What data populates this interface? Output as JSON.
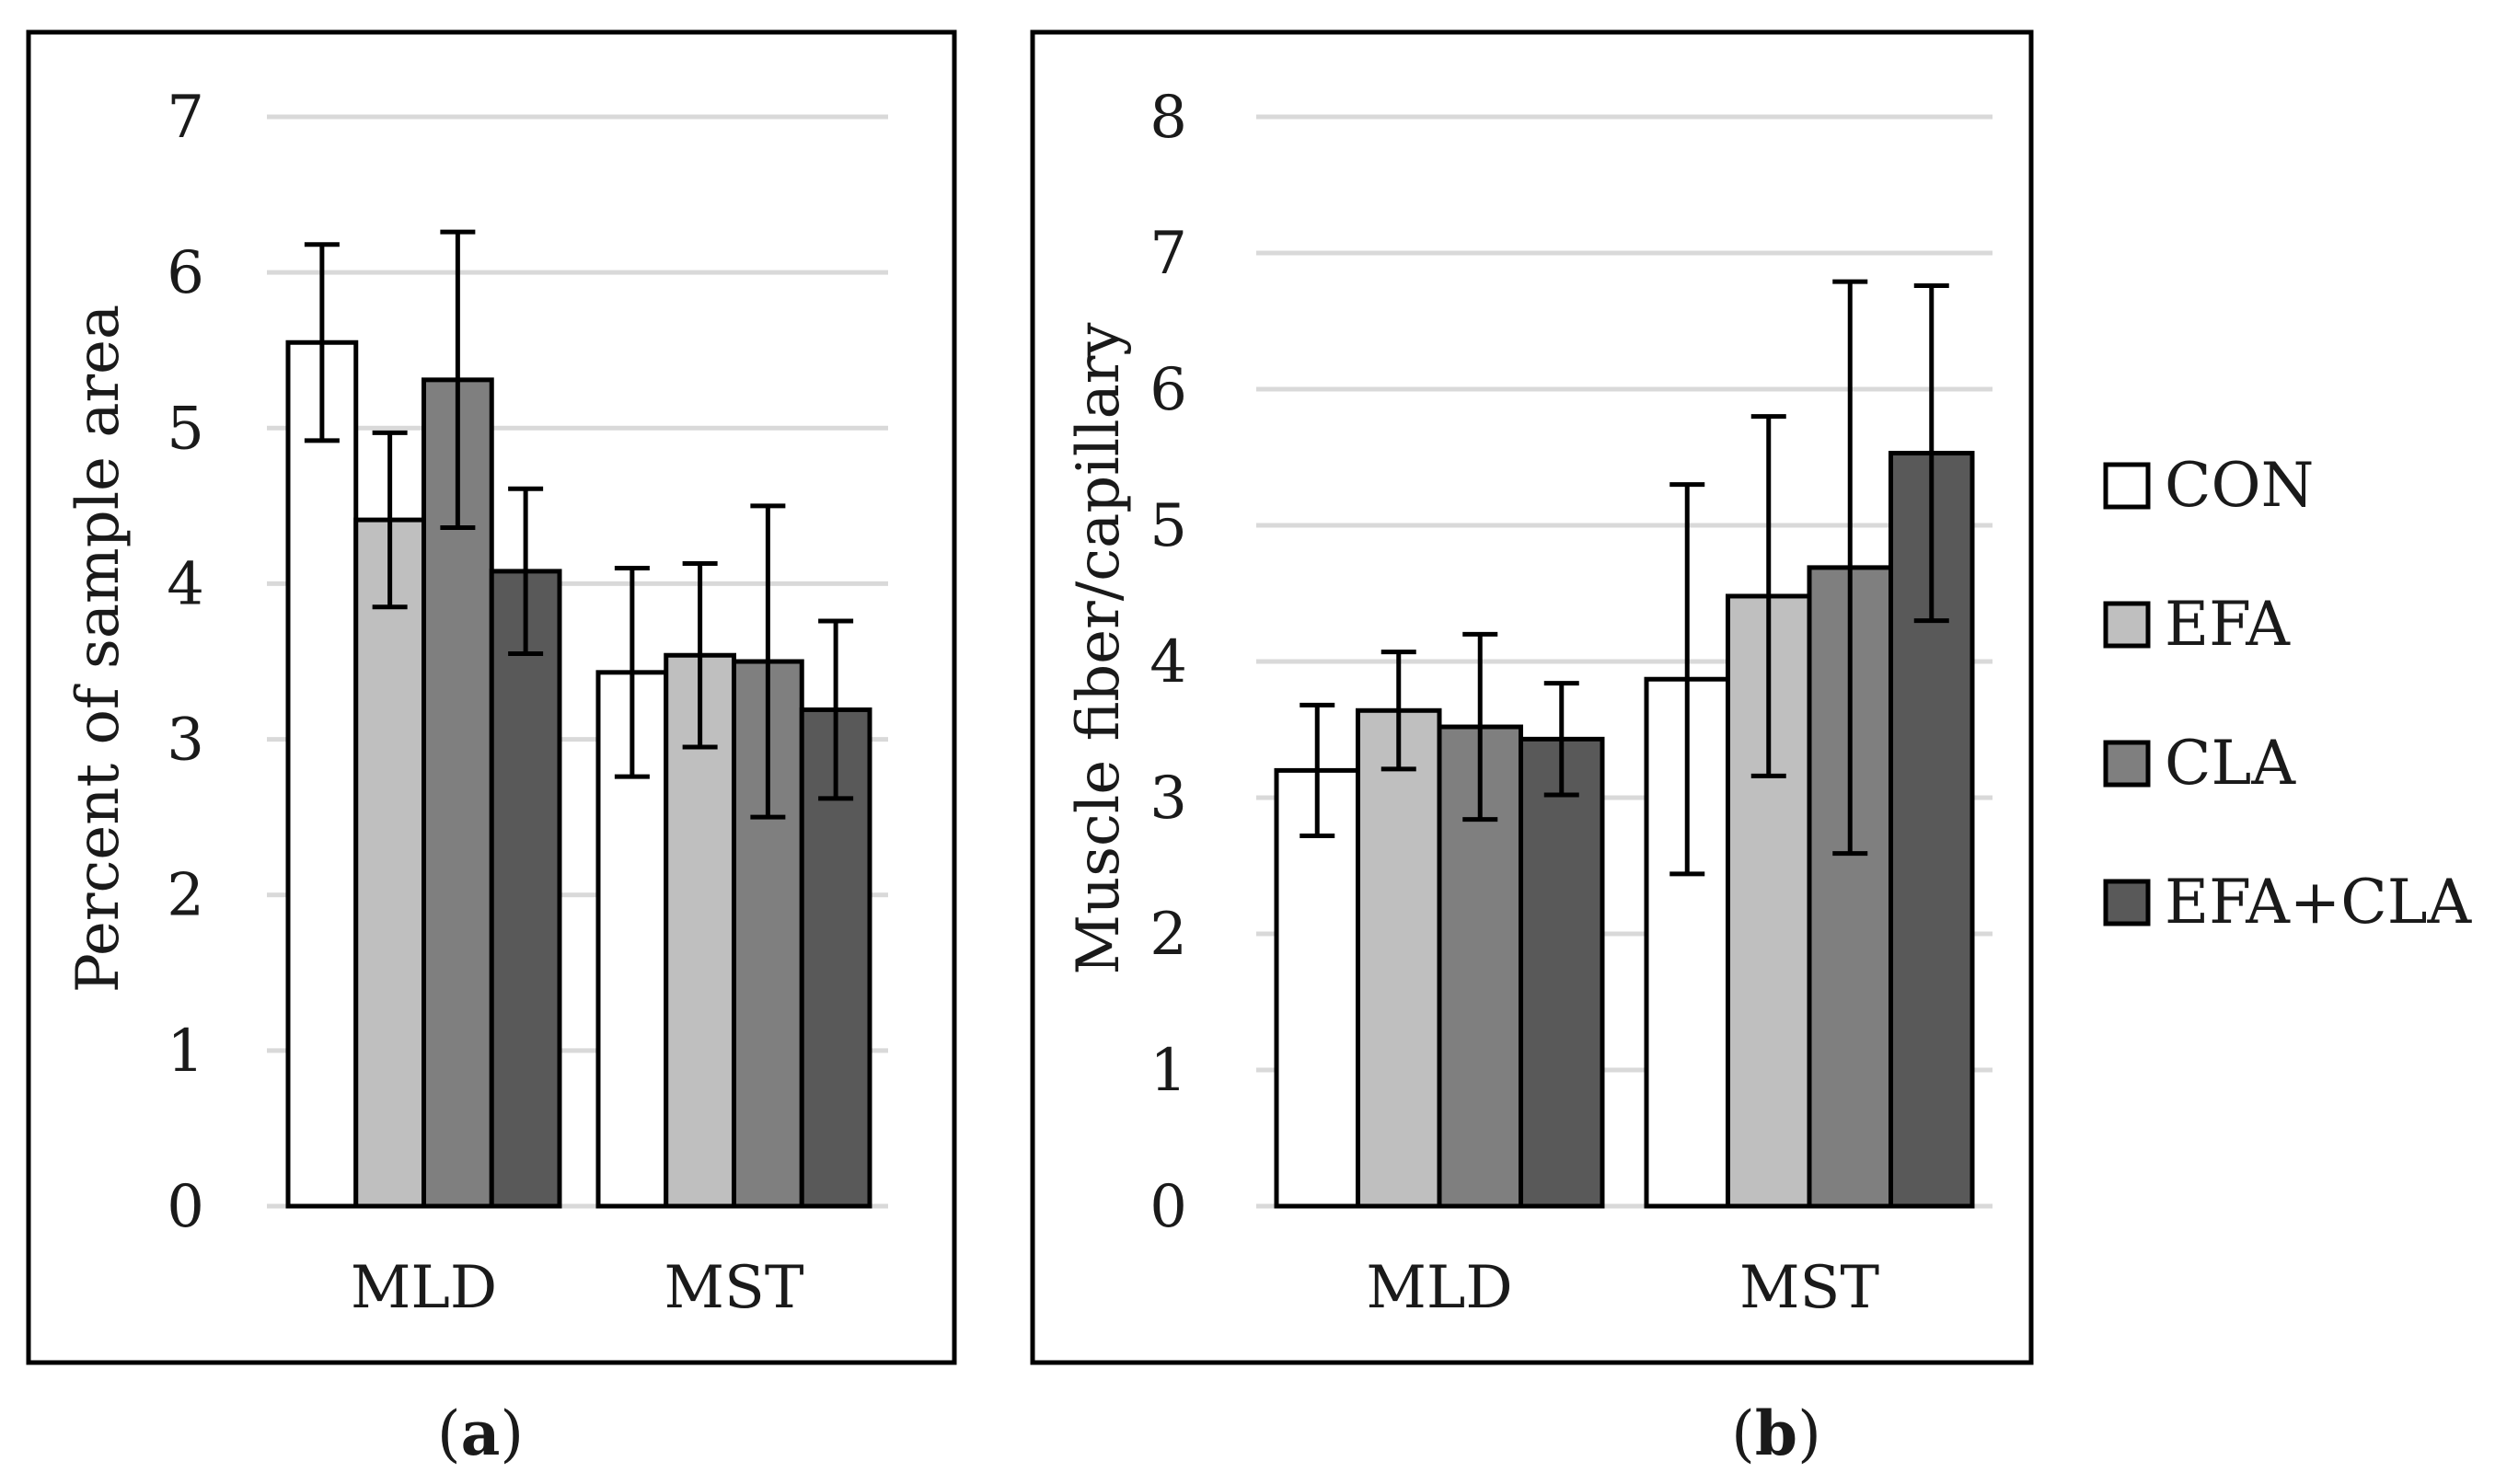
{
  "legend": [
    {
      "name": "CON",
      "color": "#ffffff"
    },
    {
      "name": "EFA",
      "color": "#bfbfbf"
    },
    {
      "name": "CLA",
      "color": "#7f7f7f"
    },
    {
      "name": "EFA+CLA",
      "color": "#595959"
    }
  ],
  "panel_labels": [
    {
      "open": "(",
      "letter": "a",
      "close": ")"
    },
    {
      "open": "(",
      "letter": "b",
      "close": ")"
    }
  ],
  "chart_data": [
    {
      "type": "bar",
      "ylabel": "Percent of sample area",
      "xlabel": "",
      "ylim": [
        0,
        7
      ],
      "yticks": [
        0,
        1,
        2,
        3,
        4,
        5,
        6,
        7
      ],
      "grid": true,
      "categories": [
        "MLD",
        "MST"
      ],
      "series": [
        {
          "name": "CON",
          "values": [
            5.55,
            3.43
          ],
          "errors": [
            0.63,
            0.67
          ]
        },
        {
          "name": "EFA",
          "values": [
            4.41,
            3.54
          ],
          "errors": [
            0.56,
            0.59
          ]
        },
        {
          "name": "CLA",
          "values": [
            5.31,
            3.5
          ],
          "errors": [
            0.95,
            1.0
          ]
        },
        {
          "name": "EFA+CLA",
          "values": [
            4.08,
            3.19
          ],
          "errors": [
            0.53,
            0.57
          ]
        }
      ]
    },
    {
      "type": "bar",
      "ylabel": "Muscle fiber/capillary",
      "xlabel": "",
      "ylim": [
        0,
        8
      ],
      "yticks": [
        0,
        1,
        2,
        3,
        4,
        5,
        6,
        7,
        8
      ],
      "grid": true,
      "categories": [
        "MLD",
        "MST"
      ],
      "series": [
        {
          "name": "CON",
          "values": [
            3.2,
            3.87
          ],
          "errors": [
            0.48,
            1.43
          ]
        },
        {
          "name": "EFA",
          "values": [
            3.64,
            4.48
          ],
          "errors": [
            0.43,
            1.32
          ]
        },
        {
          "name": "CLA",
          "values": [
            3.52,
            4.69
          ],
          "errors": [
            0.68,
            2.1
          ]
        },
        {
          "name": "EFA+CLA",
          "values": [
            3.43,
            5.53
          ],
          "errors": [
            0.41,
            1.23
          ]
        }
      ]
    }
  ]
}
